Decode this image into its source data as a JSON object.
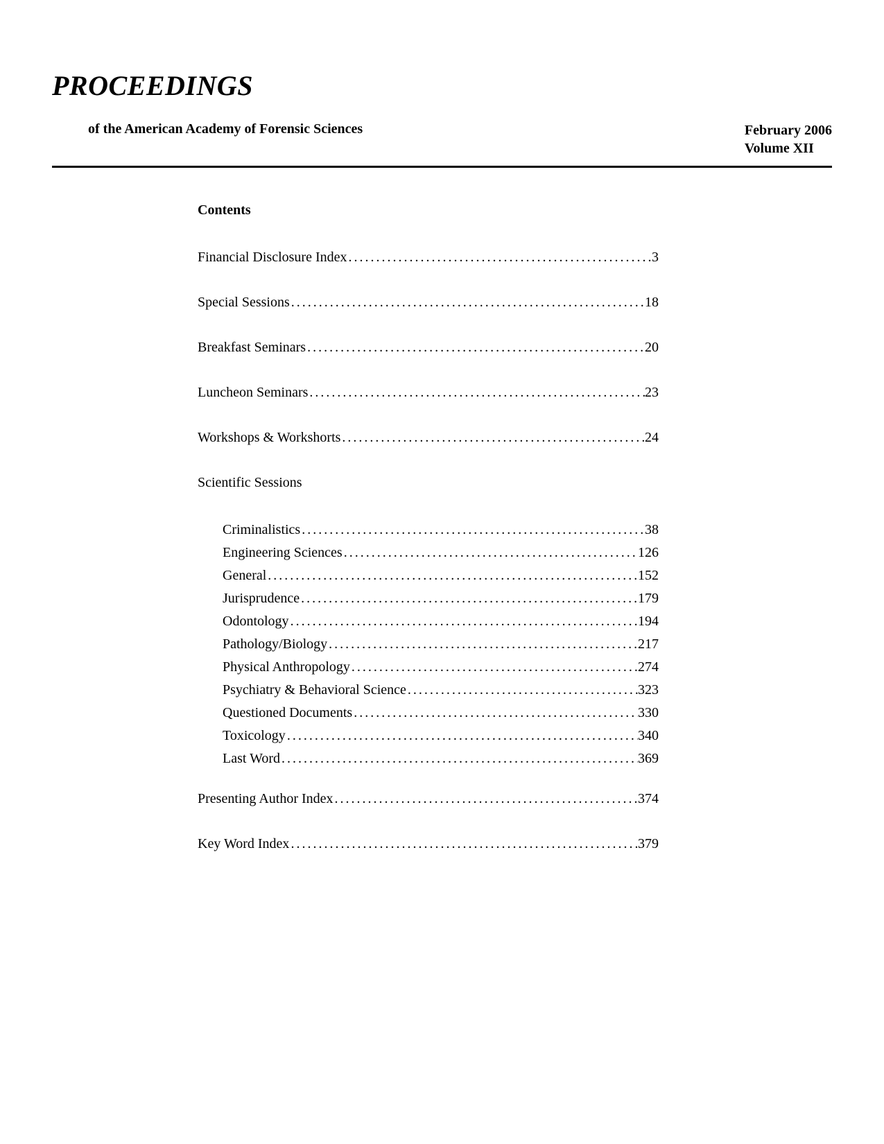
{
  "header": {
    "title": "PROCEEDINGS",
    "subtitle": "of the American Academy of Forensic Sciences",
    "date": "February 2006",
    "volume": "Volume XII"
  },
  "contents": {
    "heading": "Contents",
    "main_entries": [
      {
        "label": "Financial Disclosure Index",
        "page": "3"
      },
      {
        "label": "Special Sessions",
        "page": "18"
      },
      {
        "label": "Breakfast Seminars",
        "page": "20"
      },
      {
        "label": "Luncheon Seminars",
        "page": "23"
      },
      {
        "label": "Workshops & Workshorts",
        "page": "24"
      }
    ],
    "section_heading": "Scientific Sessions",
    "sub_entries": [
      {
        "label": "Criminalistics",
        "page": "38"
      },
      {
        "label": "Engineering Sciences",
        "page": "126"
      },
      {
        "label": "General",
        "page": "152"
      },
      {
        "label": "Jurisprudence",
        "page": "179"
      },
      {
        "label": "Odontology",
        "page": "194"
      },
      {
        "label": "Pathology/Biology",
        "page": "217"
      },
      {
        "label": "Physical Anthropology",
        "page": "274"
      },
      {
        "label": "Psychiatry & Behavioral Science",
        "page": "323"
      },
      {
        "label": "Questioned Documents",
        "page": "330"
      },
      {
        "label": "Toxicology",
        "page": "340"
      },
      {
        "label": "Last Word",
        "page": "369"
      }
    ],
    "end_entries": [
      {
        "label": "Presenting Author Index",
        "page": "374"
      },
      {
        "label": "Key Word Index",
        "page": "379"
      }
    ]
  },
  "style": {
    "dot_fill": "...................................................................................................."
  }
}
